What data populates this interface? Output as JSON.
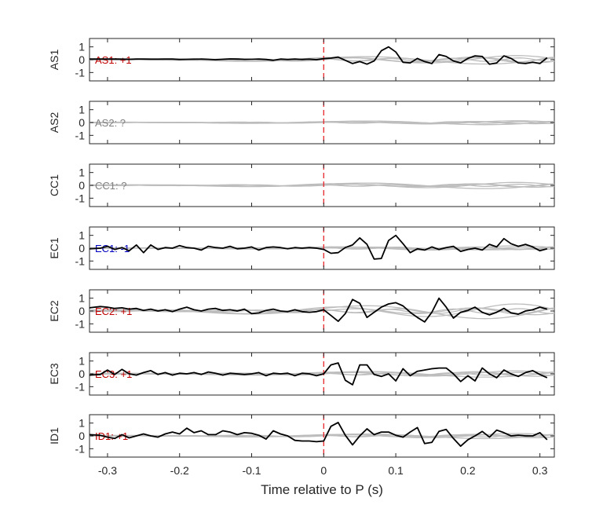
{
  "chart_data": {
    "type": "line",
    "xlabel": "Time relative to P (s)",
    "xlim": [
      -0.325,
      0.32
    ],
    "ylim": [
      -1.5,
      1.5
    ],
    "x_ticks": [
      -0.3,
      -0.2,
      -0.1,
      0,
      0.1,
      0.2,
      0.3
    ],
    "x_tick_labels": [
      "-0.3",
      "-0.2",
      "-0.1",
      "0",
      "0.1",
      "0.2",
      "0.3"
    ],
    "y_ticks": [
      1,
      0,
      -1
    ],
    "y_tick_labels": [
      "1",
      "0",
      "-1"
    ],
    "marker_x": 0,
    "colors": {
      "trace": "#000000",
      "background": "#bdbdbd",
      "marker": "#e8252b",
      "positive": "#c00000",
      "negative": "#0000c0",
      "unknown": "#808080"
    },
    "panels": [
      {
        "ylabel": "AS1",
        "label": "AS1: +1",
        "label_color": "#c00000",
        "trace": {
          "x": [
            -0.325,
            -0.3,
            -0.29,
            -0.28,
            -0.27,
            -0.26,
            -0.25,
            -0.24,
            -0.23,
            -0.22,
            -0.21,
            -0.2,
            -0.19,
            -0.18,
            -0.17,
            -0.16,
            -0.15,
            -0.14,
            -0.13,
            -0.12,
            -0.11,
            -0.1,
            -0.09,
            -0.08,
            -0.07,
            -0.06,
            -0.05,
            -0.04,
            -0.03,
            -0.02,
            -0.01,
            0,
            0.01,
            0.02,
            0.03,
            0.04,
            0.05,
            0.06,
            0.07,
            0.08,
            0.09,
            0.1,
            0.11,
            0.12,
            0.13,
            0.14,
            0.15,
            0.16,
            0.17,
            0.18,
            0.19,
            0.2,
            0.21,
            0.22,
            0.23,
            0.24,
            0.25,
            0.26,
            0.27,
            0.28,
            0.29,
            0.3,
            0.31
          ],
          "y": [
            0.05,
            0.05,
            0.05,
            0.04,
            0.03,
            0.05,
            0.05,
            0.04,
            0.04,
            0.05,
            0.05,
            0.02,
            0.03,
            0.04,
            0.05,
            0.03,
            0.0,
            0.03,
            0.06,
            0.05,
            0.02,
            0.03,
            0.05,
            0.02,
            -0.05,
            0.05,
            0.02,
            0.05,
            0.02,
            0.04,
            0.0,
            0.08,
            0.12,
            0.2,
            -0.05,
            -0.3,
            -0.15,
            -0.35,
            -0.1,
            0.7,
            1.0,
            0.6,
            -0.2,
            -0.25,
            0.1,
            -0.15,
            -0.3,
            0.4,
            0.25,
            -0.1,
            -0.25,
            0.1,
            0.3,
            0.25,
            -0.35,
            -0.25,
            0.3,
            0.1,
            -0.25,
            -0.3,
            -0.2,
            -0.3,
            0.15
          ]
        },
        "background": [
          {
            "amp": 0.25,
            "freq": 6,
            "phase": 0.0
          },
          {
            "amp": 0.35,
            "freq": 4,
            "phase": 1.2
          },
          {
            "amp": 0.2,
            "freq": 9,
            "phase": 2.1
          },
          {
            "amp": 0.4,
            "freq": 3,
            "phase": 0.6
          },
          {
            "amp": 0.15,
            "freq": 11,
            "phase": 1.7
          }
        ]
      },
      {
        "ylabel": "AS2",
        "label": "AS2: ?",
        "label_color": "#808080",
        "trace": null,
        "background": [
          {
            "amp": 0.1,
            "freq": 6,
            "phase": 0.0
          },
          {
            "amp": 0.15,
            "freq": 4,
            "phase": 1.2
          },
          {
            "amp": 0.1,
            "freq": 9,
            "phase": 2.1
          },
          {
            "amp": 0.2,
            "freq": 3,
            "phase": 0.6
          },
          {
            "amp": 0.08,
            "freq": 11,
            "phase": 1.7
          }
        ]
      },
      {
        "ylabel": "CC1",
        "label": "CC1: ?",
        "label_color": "#808080",
        "trace": null,
        "background": [
          {
            "amp": 0.15,
            "freq": 6,
            "phase": 0.0
          },
          {
            "amp": 0.25,
            "freq": 4,
            "phase": 1.2
          },
          {
            "amp": 0.12,
            "freq": 9,
            "phase": 2.1
          },
          {
            "amp": 0.3,
            "freq": 3,
            "phase": 0.6
          },
          {
            "amp": 0.1,
            "freq": 11,
            "phase": 1.7
          }
        ]
      },
      {
        "ylabel": "EC1",
        "label": "EC1: -1",
        "label_color": "#0000c0",
        "trace": {
          "x": [
            -0.325,
            -0.31,
            -0.3,
            -0.29,
            -0.28,
            -0.27,
            -0.26,
            -0.25,
            -0.24,
            -0.23,
            -0.22,
            -0.21,
            -0.2,
            -0.19,
            -0.18,
            -0.17,
            -0.16,
            -0.15,
            -0.14,
            -0.13,
            -0.12,
            -0.11,
            -0.1,
            -0.09,
            -0.08,
            -0.07,
            -0.06,
            -0.05,
            -0.04,
            -0.03,
            -0.02,
            -0.01,
            0,
            0.01,
            0.02,
            0.03,
            0.04,
            0.05,
            0.06,
            0.07,
            0.08,
            0.09,
            0.1,
            0.11,
            0.12,
            0.13,
            0.14,
            0.15,
            0.16,
            0.17,
            0.18,
            0.19,
            0.2,
            0.21,
            0.22,
            0.23,
            0.24,
            0.25,
            0.26,
            0.27,
            0.28,
            0.29,
            0.3,
            0.31
          ],
          "y": [
            -0.05,
            0.0,
            0.15,
            -0.1,
            0.05,
            -0.2,
            0.25,
            -0.35,
            0.25,
            -0.1,
            0.05,
            0.0,
            0.2,
            0.05,
            0.0,
            -0.15,
            0.15,
            0.05,
            0.0,
            0.15,
            -0.05,
            0.0,
            0.1,
            -0.15,
            0.05,
            0.1,
            0.05,
            -0.05,
            0.05,
            0.0,
            0.05,
            0.0,
            -0.1,
            -0.4,
            -0.35,
            0.05,
            0.25,
            0.8,
            0.3,
            -0.85,
            -0.8,
            0.6,
            1.0,
            0.35,
            -0.35,
            -0.05,
            -0.15,
            0.1,
            -0.1,
            0.05,
            0.15,
            -0.25,
            -0.1,
            0.0,
            -0.15,
            0.3,
            0.1,
            0.75,
            0.35,
            0.15,
            0.3,
            0.1,
            -0.2,
            -0.05
          ]
        },
        "background": [
          {
            "amp": 0.1,
            "freq": 6,
            "phase": 0.0
          },
          {
            "amp": 0.2,
            "freq": 4,
            "phase": 1.2
          },
          {
            "amp": 0.12,
            "freq": 9,
            "phase": 2.1
          },
          {
            "amp": 0.15,
            "freq": 3,
            "phase": 0.6
          },
          {
            "amp": 0.08,
            "freq": 11,
            "phase": 1.7
          }
        ]
      },
      {
        "ylabel": "EC2",
        "label": "EC2: +1",
        "label_color": "#c00000",
        "trace": {
          "x": [
            -0.325,
            -0.31,
            -0.3,
            -0.29,
            -0.28,
            -0.27,
            -0.26,
            -0.25,
            -0.24,
            -0.23,
            -0.22,
            -0.21,
            -0.2,
            -0.19,
            -0.18,
            -0.17,
            -0.16,
            -0.15,
            -0.14,
            -0.13,
            -0.12,
            -0.11,
            -0.1,
            -0.09,
            -0.08,
            -0.07,
            -0.06,
            -0.05,
            -0.04,
            -0.03,
            -0.02,
            -0.01,
            0,
            0.01,
            0.02,
            0.03,
            0.04,
            0.05,
            0.06,
            0.07,
            0.08,
            0.09,
            0.1,
            0.11,
            0.12,
            0.13,
            0.14,
            0.15,
            0.16,
            0.17,
            0.18,
            0.19,
            0.2,
            0.21,
            0.22,
            0.23,
            0.24,
            0.25,
            0.26,
            0.27,
            0.28,
            0.29,
            0.3,
            0.31
          ],
          "y": [
            0.25,
            0.35,
            0.3,
            0.2,
            0.25,
            0.15,
            0.2,
            0.05,
            0.15,
            0.0,
            0.1,
            -0.05,
            0.15,
            0.3,
            0.1,
            0.0,
            0.15,
            0.2,
            0.05,
            0.1,
            0.0,
            0.15,
            -0.2,
            -0.15,
            0.05,
            0.15,
            0.0,
            -0.05,
            0.1,
            -0.05,
            -0.1,
            -0.05,
            0.1,
            -0.35,
            -0.8,
            -0.2,
            0.9,
            0.6,
            -0.5,
            -0.1,
            0.3,
            0.55,
            0.65,
            0.4,
            -0.1,
            -0.5,
            -0.85,
            -0.1,
            1.0,
            0.3,
            -0.55,
            -0.1,
            0.05,
            0.3,
            -0.1,
            -0.3,
            -0.1,
            0.2,
            -0.15,
            -0.25,
            0.0,
            0.1,
            0.3,
            0.15
          ]
        },
        "background": [
          {
            "amp": 0.3,
            "freq": 6,
            "phase": 0.0
          },
          {
            "amp": 0.6,
            "freq": 4,
            "phase": 1.2
          },
          {
            "amp": 0.25,
            "freq": 9,
            "phase": 2.1
          },
          {
            "amp": 0.7,
            "freq": 3,
            "phase": 0.6
          },
          {
            "amp": 0.2,
            "freq": 11,
            "phase": 1.7
          }
        ]
      },
      {
        "ylabel": "EC3",
        "label": "EC3: +1",
        "label_color": "#c00000",
        "trace": {
          "x": [
            -0.325,
            -0.31,
            -0.3,
            -0.29,
            -0.28,
            -0.27,
            -0.26,
            -0.25,
            -0.24,
            -0.23,
            -0.22,
            -0.21,
            -0.2,
            -0.19,
            -0.18,
            -0.17,
            -0.16,
            -0.15,
            -0.14,
            -0.13,
            -0.12,
            -0.11,
            -0.1,
            -0.09,
            -0.08,
            -0.07,
            -0.06,
            -0.05,
            -0.04,
            -0.03,
            -0.02,
            -0.01,
            0,
            0.01,
            0.02,
            0.03,
            0.04,
            0.05,
            0.06,
            0.07,
            0.08,
            0.09,
            0.1,
            0.11,
            0.12,
            0.13,
            0.14,
            0.15,
            0.16,
            0.17,
            0.18,
            0.19,
            0.2,
            0.21,
            0.22,
            0.23,
            0.24,
            0.25,
            0.26,
            0.27,
            0.28,
            0.29,
            0.3,
            0.31
          ],
          "y": [
            -0.1,
            -0.05,
            0.3,
            -0.05,
            0.35,
            0.0,
            -0.1,
            0.1,
            0.25,
            -0.05,
            0.1,
            -0.1,
            0.05,
            0.0,
            0.1,
            -0.05,
            0.15,
            0.05,
            -0.1,
            0.05,
            0.0,
            -0.05,
            0.0,
            0.1,
            -0.15,
            0.05,
            0.0,
            0.05,
            -0.15,
            0.05,
            0.0,
            -0.15,
            0.0,
            0.7,
            0.85,
            -0.5,
            -0.85,
            0.7,
            0.7,
            -0.05,
            -0.2,
            0.0,
            -0.55,
            0.4,
            -0.15,
            0.2,
            0.3,
            0.4,
            0.45,
            0.45,
            0.0,
            -0.6,
            -0.15,
            -0.55,
            0.45,
            0.0,
            -0.3,
            0.3,
            0.0,
            -0.2,
            0.1,
            0.25,
            -0.05,
            -0.3
          ]
        },
        "background": [
          {
            "amp": 0.2,
            "freq": 6,
            "phase": 0.0
          },
          {
            "amp": 0.25,
            "freq": 4,
            "phase": 1.2
          },
          {
            "amp": 0.15,
            "freq": 9,
            "phase": 2.1
          },
          {
            "amp": 0.3,
            "freq": 3,
            "phase": 0.6
          },
          {
            "amp": 0.12,
            "freq": 11,
            "phase": 1.7
          }
        ]
      },
      {
        "ylabel": "ID1",
        "label": "ID1: +1",
        "label_color": "#c00000",
        "trace": {
          "x": [
            -0.325,
            -0.31,
            -0.3,
            -0.29,
            -0.28,
            -0.27,
            -0.26,
            -0.25,
            -0.24,
            -0.23,
            -0.22,
            -0.21,
            -0.2,
            -0.19,
            -0.18,
            -0.17,
            -0.16,
            -0.15,
            -0.14,
            -0.13,
            -0.12,
            -0.11,
            -0.1,
            -0.09,
            -0.08,
            -0.07,
            -0.06,
            -0.05,
            -0.04,
            -0.03,
            -0.02,
            -0.01,
            0,
            0.01,
            0.02,
            0.03,
            0.04,
            0.05,
            0.06,
            0.07,
            0.08,
            0.09,
            0.1,
            0.11,
            0.12,
            0.13,
            0.14,
            0.15,
            0.16,
            0.17,
            0.18,
            0.19,
            0.2,
            0.21,
            0.22,
            0.23,
            0.24,
            0.25,
            0.26,
            0.27,
            0.28,
            0.29,
            0.3,
            0.31
          ],
          "y": [
            0.1,
            0.05,
            -0.1,
            -0.2,
            0.1,
            -0.15,
            0.0,
            0.15,
            0.0,
            -0.1,
            0.15,
            0.3,
            0.15,
            0.6,
            0.25,
            0.4,
            0.1,
            0.1,
            0.4,
            0.3,
            0.1,
            0.25,
            0.2,
            0.05,
            -0.25,
            0.4,
            0.15,
            0.0,
            -0.35,
            -0.4,
            -0.4,
            -0.45,
            -0.4,
            0.75,
            1.05,
            0.05,
            -0.7,
            0.0,
            0.55,
            0.1,
            0.3,
            0.3,
            0.05,
            -0.1,
            0.3,
            0.65,
            -0.6,
            -0.5,
            0.35,
            0.5,
            -0.2,
            -0.8,
            -0.3,
            0.0,
            0.35,
            -0.1,
            0.45,
            0.25,
            0.0,
            0.05,
            0.0,
            0.0,
            0.25,
            -0.3
          ]
        },
        "background": [
          {
            "amp": 0.15,
            "freq": 6,
            "phase": 0.0
          },
          {
            "amp": 0.2,
            "freq": 4,
            "phase": 1.2
          },
          {
            "amp": 0.12,
            "freq": 9,
            "phase": 2.1
          },
          {
            "amp": 0.25,
            "freq": 3,
            "phase": 0.6
          },
          {
            "amp": 0.1,
            "freq": 11,
            "phase": 1.7
          }
        ]
      }
    ]
  }
}
